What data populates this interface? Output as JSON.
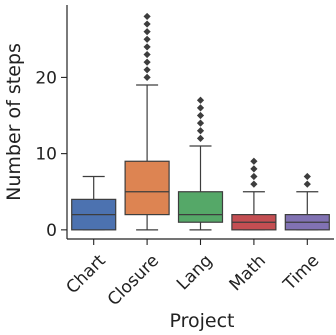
{
  "chart_data": {
    "type": "box",
    "title": "",
    "xlabel": "Project",
    "ylabel": "Number of steps",
    "categories": [
      "Chart",
      "Closure",
      "Lang",
      "Math",
      "Time"
    ],
    "colors": [
      "#4c72b0",
      "#dd8452",
      "#55a868",
      "#c44e52",
      "#8172b3"
    ],
    "ylim": [
      -1.2,
      29.5
    ],
    "yticks": [
      0,
      10,
      20
    ],
    "grid": false,
    "legend": "none",
    "boxes": [
      {
        "name": "Chart",
        "whisker_low": 0,
        "q1": 0,
        "median": 2,
        "q3": 4,
        "whisker_high": 7,
        "fliers": []
      },
      {
        "name": "Closure",
        "whisker_low": 0,
        "q1": 2,
        "median": 5,
        "q3": 9,
        "whisker_high": 19,
        "fliers": [
          20,
          21,
          22,
          23,
          24,
          25,
          26,
          27,
          28
        ]
      },
      {
        "name": "Lang",
        "whisker_low": 0,
        "q1": 1,
        "median": 2,
        "q3": 5,
        "whisker_high": 11,
        "fliers": [
          12,
          13,
          14,
          15,
          16,
          17
        ]
      },
      {
        "name": "Math",
        "whisker_low": 0,
        "q1": 0,
        "median": 1,
        "q3": 2,
        "whisker_high": 5,
        "fliers": [
          6,
          7,
          8,
          9
        ]
      },
      {
        "name": "Time",
        "whisker_low": 0,
        "q1": 0,
        "median": 1,
        "q3": 2,
        "whisker_high": 5,
        "fliers": [
          6,
          7
        ]
      }
    ]
  }
}
